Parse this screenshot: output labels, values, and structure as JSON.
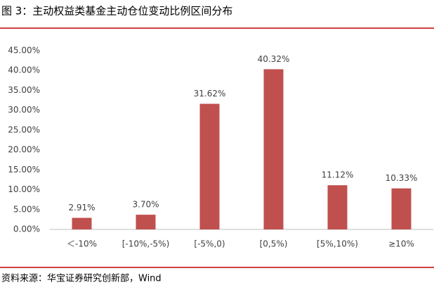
{
  "chart_data": {
    "type": "bar",
    "title": "图 3：主动权益类基金主动仓位变动比例区间分布",
    "source": "资料来源：华宝证券研究创新部，Wind",
    "categories": [
      "＜-10%",
      "[-10%,-5%)",
      "[-5%,0)",
      "[0,5%)",
      "[5%,10%)",
      "≥10%"
    ],
    "values": [
      2.91,
      3.7,
      31.62,
      40.32,
      11.12,
      10.33
    ],
    "value_labels": [
      "2.91%",
      "3.70%",
      "31.62%",
      "40.32%",
      "11.12%",
      "10.33%"
    ],
    "color": "#c0504d",
    "ylim": [
      0,
      45
    ],
    "yticks": [
      {
        "value": 0,
        "label": "0.00%"
      },
      {
        "value": 5,
        "label": "5.00%"
      },
      {
        "value": 10,
        "label": "10.00%"
      },
      {
        "value": 15,
        "label": "15.00%"
      },
      {
        "value": 20,
        "label": "20.00%"
      },
      {
        "value": 25,
        "label": "25.00%"
      },
      {
        "value": 30,
        "label": "30.00%"
      },
      {
        "value": 35,
        "label": "35.00%"
      },
      {
        "value": 40,
        "label": "40.00%"
      },
      {
        "value": 45,
        "label": "45.00%"
      }
    ],
    "grid": false
  }
}
